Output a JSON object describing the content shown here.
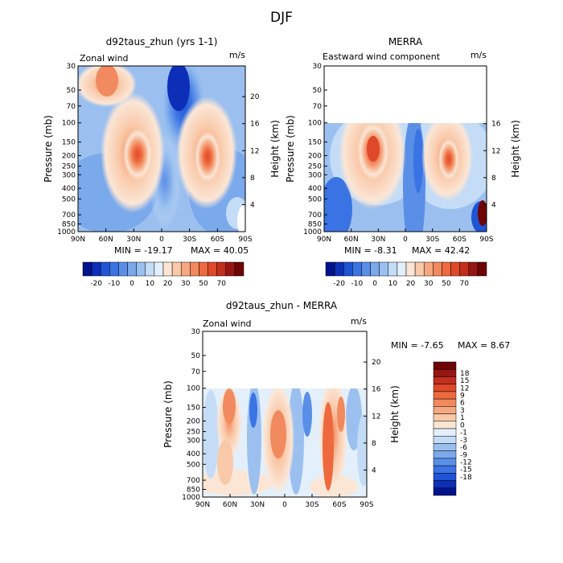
{
  "page_title": "DJF",
  "colors": {
    "neg": [
      "#e3f0fb",
      "#c4dcf6",
      "#9bc0f0",
      "#7aa9ec",
      "#5a8fe8",
      "#3a73e3",
      "#1f54d6",
      "#0d2fb8",
      "#00138c"
    ],
    "pos": [
      "#fbe6d6",
      "#f9c9a9",
      "#f6a881",
      "#f28a5f",
      "#ee6a3e",
      "#e0482a",
      "#c22f1c",
      "#961614",
      "#6e0405"
    ]
  },
  "chart_data": [
    {
      "type": "heatmap",
      "title": "d92taus_zhun (yrs 1-1)",
      "top_left_label": "Zonal wind",
      "units": "m/s",
      "xlabel": "",
      "ylabel": "Pressure (mb)",
      "ylabel_right": "Height (km)",
      "x_ticks": [
        "90N",
        "60N",
        "30N",
        "0",
        "30S",
        "60S",
        "90S"
      ],
      "y_ticks": [
        "30",
        "50",
        "70",
        "100",
        "150",
        "200",
        "250",
        "300",
        "400",
        "500",
        "700",
        "850",
        "1000"
      ],
      "right_ticks": [
        "20",
        "16",
        "12",
        "8",
        "4"
      ],
      "min_label": "MIN = -19.17",
      "max_label": "MAX = 40.05",
      "colorbar_labels": [
        "-20",
        "-10",
        "0",
        "10",
        "20",
        "30",
        "50",
        "70"
      ],
      "z_min": -19.17,
      "z_max": 40.05
    },
    {
      "type": "heatmap",
      "title": "MERRA",
      "top_left_label": "Eastward wind component",
      "units": "m/s",
      "xlabel": "",
      "ylabel": "Pressure (mb)",
      "ylabel_right": "Height (km)",
      "x_ticks": [
        "90N",
        "60N",
        "30N",
        "0",
        "30S",
        "60S",
        "90S"
      ],
      "y_ticks": [
        "30",
        "50",
        "70",
        "100",
        "150",
        "200",
        "250",
        "300",
        "400",
        "500",
        "700",
        "850",
        "1000"
      ],
      "right_ticks": [
        "16",
        "12",
        "8",
        "4"
      ],
      "min_label": "MIN = -8.31",
      "max_label": "MAX = 42.42",
      "colorbar_labels": [
        "-20",
        "-10",
        "0",
        "10",
        "20",
        "30",
        "50",
        "70"
      ],
      "z_min": -8.31,
      "z_max": 42.42,
      "data_top_pressure": 100
    },
    {
      "type": "heatmap",
      "title": "d92taus_zhun - MERRA",
      "top_left_label": "Zonal wind",
      "units": "m/s",
      "xlabel": "",
      "ylabel": "Pressure (mb)",
      "ylabel_right": "Height (km)",
      "x_ticks": [
        "90N",
        "60N",
        "30N",
        "0",
        "30S",
        "60S",
        "90S"
      ],
      "y_ticks": [
        "30",
        "50",
        "70",
        "100",
        "150",
        "200",
        "250",
        "300",
        "400",
        "500",
        "700",
        "850",
        "1000"
      ],
      "right_ticks": [
        "20",
        "16",
        "12",
        "8",
        "4"
      ],
      "min_label": "MIN = -7.65",
      "max_label": "MAX = 8.67",
      "colorbar_labels": [
        "18",
        "15",
        "12",
        "9",
        "6",
        "3",
        "1",
        "0",
        "-1",
        "-3",
        "-6",
        "-9",
        "-12",
        "-15",
        "-18"
      ],
      "z_min": -7.65,
      "z_max": 8.67,
      "data_top_pressure": 100
    }
  ]
}
